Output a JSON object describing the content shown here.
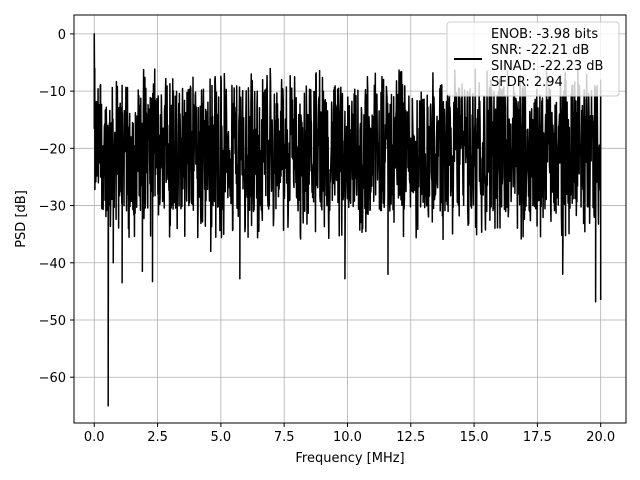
{
  "chart_data": {
    "type": "line",
    "xlabel": "Frequency [MHz]",
    "ylabel": "PSD [dB]",
    "xlim": [
      -0.8,
      21.0
    ],
    "ylim": [
      -68.0,
      3.3
    ],
    "xticks": [
      0.0,
      2.5,
      5.0,
      7.5,
      10.0,
      12.5,
      15.0,
      17.5,
      20.0
    ],
    "xtick_labels": [
      "0.0",
      "2.5",
      "5.0",
      "7.5",
      "10.0",
      "12.5",
      "15.0",
      "17.5",
      "20.0"
    ],
    "yticks": [
      0,
      -10,
      -20,
      -30,
      -40,
      -50,
      -60
    ],
    "ytick_labels": [
      "0",
      "−10",
      "−20",
      "−30",
      "−40",
      "−50",
      "−60"
    ],
    "grid": true,
    "legend_position": "top-right",
    "line_color": "#000000",
    "series": [
      {
        "legend_lines": [
          "ENOB: -3.98 bits",
          "SNR: -22.21 dB",
          "SINAD: -22.23 dB",
          "SFDR: 2.94"
        ],
        "x_range": [
          0.0,
          20.0
        ],
        "noise_floor_db": -20,
        "noise_band_db": [
          -30,
          -10
        ],
        "noise_max_db": -6,
        "points": [
          [
            0.0,
            0.0
          ],
          [
            0.02,
            -6.0
          ],
          [
            0.1,
            -20.0
          ],
          [
            0.15,
            -10.0
          ],
          [
            0.25,
            -25.0
          ],
          [
            0.5,
            -28.0
          ],
          [
            0.55,
            -65.0
          ],
          [
            0.6,
            -30.0
          ],
          [
            0.75,
            -40.0
          ],
          [
            1.1,
            -43.5
          ],
          [
            1.9,
            -41.5
          ],
          [
            2.3,
            -43.3
          ],
          [
            4.6,
            -38.0
          ],
          [
            5.75,
            -42.8
          ],
          [
            9.9,
            -42.8
          ],
          [
            11.6,
            -42.0
          ],
          [
            18.5,
            -42.0
          ],
          [
            19.8,
            -46.8
          ],
          [
            20.0,
            -46.5
          ]
        ]
      }
    ]
  }
}
